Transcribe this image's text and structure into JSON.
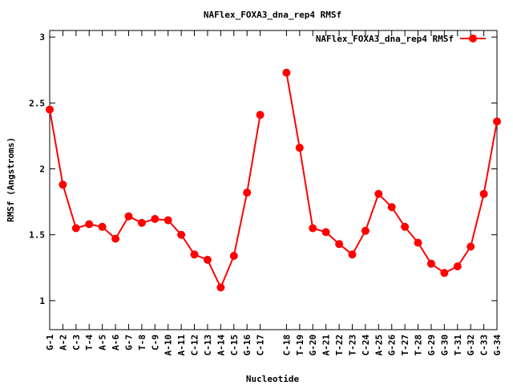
{
  "chart_data": {
    "type": "line",
    "title": "NAFlex_FOXA3_dna_rep4 RMSf",
    "xlabel": "Nucleotide",
    "ylabel": "RMSf (Angstroms)",
    "ylim": [
      0.78,
      3.05
    ],
    "yticks": [
      "1",
      "1.5",
      "2",
      "2.5",
      "3"
    ],
    "ytick_values": [
      1,
      1.5,
      2,
      2.5,
      3
    ],
    "grid": false,
    "legend_position": "top-right",
    "color": "#ff0000",
    "categories": [
      "G-1",
      "A-2",
      "C-3",
      "T-4",
      "A-5",
      "A-6",
      "G-7",
      "T-8",
      "C-9",
      "A-10",
      "A-11",
      "C-12",
      "C-13",
      "A-14",
      "C-15",
      "G-16",
      "C-17",
      "C-18",
      "T-19",
      "G-20",
      "A-21",
      "T-22",
      "T-23",
      "C-24",
      "A-25",
      "G-26",
      "T-27",
      "T-28",
      "G-29",
      "G-30",
      "T-31",
      "G-32",
      "C-33",
      "G-34"
    ],
    "x_positions": [
      1,
      2,
      3,
      4,
      5,
      6,
      7,
      8,
      9,
      10,
      11,
      12,
      13,
      14,
      15,
      16,
      17,
      19,
      20,
      21,
      22,
      23,
      24,
      25,
      26,
      27,
      28,
      29,
      30,
      31,
      32,
      33,
      34,
      35
    ],
    "xlim": [
      1,
      35
    ],
    "series": [
      {
        "name": "NAFlex_FOXA3_dna_rep4 RMSf",
        "segments": [
          [
            2.45,
            1.88,
            1.55,
            1.58,
            1.56,
            1.47,
            1.64,
            1.59,
            1.62,
            1.61,
            1.5,
            1.35,
            1.31,
            1.1,
            1.34,
            1.82,
            2.41
          ],
          [
            2.73,
            2.16,
            1.55,
            1.52,
            1.43,
            1.35,
            1.53,
            1.81,
            1.71,
            1.56,
            1.44,
            1.28,
            1.21,
            1.26,
            1.41,
            1.81,
            2.36
          ]
        ]
      }
    ]
  }
}
